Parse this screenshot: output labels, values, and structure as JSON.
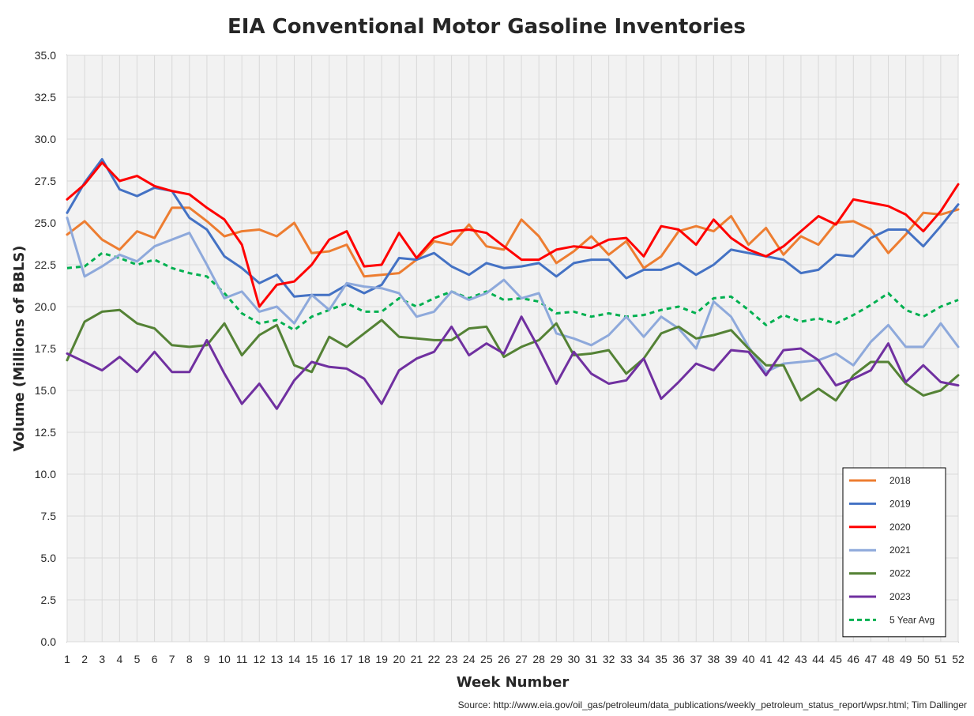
{
  "chart_data": {
    "type": "line",
    "title": "EIA Conventional Motor Gasoline Inventories",
    "xlabel": "Week Number",
    "ylabel": "Volume (Millions of BBLS)",
    "source": "Source: http://www.eia.gov/oil_gas/petroleum/data_publications/weekly_petroleum_status_report/wpsr.html; Tim Dallinger",
    "xlim": [
      1,
      52
    ],
    "ylim": [
      0,
      35
    ],
    "ytick_step": 2.5,
    "grid": true,
    "legend_position": "bottom-right",
    "x": [
      1,
      2,
      3,
      4,
      5,
      6,
      7,
      8,
      9,
      10,
      11,
      12,
      13,
      14,
      15,
      16,
      17,
      18,
      19,
      20,
      21,
      22,
      23,
      24,
      25,
      26,
      27,
      28,
      29,
      30,
      31,
      32,
      33,
      34,
      35,
      36,
      37,
      38,
      39,
      40,
      41,
      42,
      43,
      44,
      45,
      46,
      47,
      48,
      49,
      50,
      51,
      52
    ],
    "series": [
      {
        "name": "2018",
        "color": "#ED7D31",
        "dashed": false,
        "values": [
          24.3,
          25.1,
          24.0,
          23.4,
          24.5,
          24.1,
          25.9,
          25.9,
          25.1,
          24.2,
          24.5,
          24.6,
          24.2,
          25.0,
          23.2,
          23.3,
          23.7,
          21.8,
          21.9,
          22.0,
          22.8,
          23.9,
          23.7,
          24.9,
          23.6,
          23.4,
          25.2,
          24.2,
          22.6,
          23.3,
          24.2,
          23.1,
          23.9,
          22.3,
          23.0,
          24.5,
          24.8,
          24.5,
          25.4,
          23.7,
          24.7,
          23.1,
          24.2,
          23.7,
          25.0,
          25.1,
          24.6,
          23.2,
          24.3,
          25.6,
          25.5,
          25.8
        ]
      },
      {
        "name": "2019",
        "color": "#4472C4",
        "dashed": false,
        "values": [
          25.6,
          27.4,
          28.8,
          27.0,
          26.6,
          27.1,
          26.9,
          25.3,
          24.6,
          23.0,
          22.3,
          21.4,
          21.9,
          20.6,
          20.7,
          20.7,
          21.3,
          20.8,
          21.3,
          22.9,
          22.8,
          23.2,
          22.4,
          21.9,
          22.6,
          22.3,
          22.4,
          22.6,
          21.8,
          22.6,
          22.8,
          22.8,
          21.7,
          22.2,
          22.2,
          22.6,
          21.9,
          22.5,
          23.4,
          23.2,
          23.0,
          22.8,
          22.0,
          22.2,
          23.1,
          23.0,
          24.1,
          24.6,
          24.6,
          23.6,
          24.8,
          26.1
        ]
      },
      {
        "name": "2020",
        "color": "#FF0000",
        "dashed": false,
        "values": [
          26.4,
          27.3,
          28.6,
          27.5,
          27.8,
          27.2,
          26.9,
          26.7,
          25.9,
          25.2,
          23.7,
          20.0,
          21.3,
          21.5,
          22.5,
          24.0,
          24.5,
          22.4,
          22.5,
          24.4,
          22.9,
          24.1,
          24.5,
          24.6,
          24.4,
          23.6,
          22.8,
          22.8,
          23.4,
          23.6,
          23.5,
          24.0,
          24.1,
          23.0,
          24.8,
          24.6,
          23.7,
          25.2,
          24.1,
          23.4,
          23.0,
          23.6,
          24.5,
          25.4,
          24.9,
          26.4,
          26.2,
          26.0,
          25.5,
          24.5,
          25.7,
          27.3
        ]
      },
      {
        "name": "2021",
        "color": "#8EA9DB",
        "dashed": false,
        "values": [
          25.3,
          21.8,
          22.4,
          23.1,
          22.7,
          23.6,
          24.0,
          24.4,
          22.5,
          20.5,
          20.9,
          19.7,
          20.0,
          19.0,
          20.7,
          19.8,
          21.4,
          21.2,
          21.1,
          20.8,
          19.4,
          19.7,
          20.9,
          20.4,
          20.8,
          21.6,
          20.5,
          20.8,
          18.4,
          18.1,
          17.7,
          18.3,
          19.4,
          18.2,
          19.4,
          18.7,
          17.5,
          20.3,
          19.4,
          17.6,
          16.1,
          16.6,
          16.7,
          16.8,
          17.2,
          16.5,
          17.9,
          18.9,
          17.6,
          17.6,
          19.0,
          17.6
        ]
      },
      {
        "name": "2022",
        "color": "#548235",
        "dashed": false,
        "values": [
          16.8,
          19.1,
          19.7,
          19.8,
          19.0,
          18.7,
          17.7,
          17.6,
          17.7,
          19.0,
          17.1,
          18.3,
          18.9,
          16.5,
          16.1,
          18.2,
          17.6,
          18.4,
          19.2,
          18.2,
          18.1,
          18.0,
          18.0,
          18.7,
          18.8,
          17.0,
          17.6,
          18.0,
          19.0,
          17.1,
          17.2,
          17.4,
          16.0,
          16.9,
          18.4,
          18.8,
          18.1,
          18.3,
          18.6,
          17.5,
          16.5,
          16.5,
          14.4,
          15.1,
          14.4,
          15.9,
          16.7,
          16.7,
          15.4,
          14.7,
          15.0,
          15.9
        ]
      },
      {
        "name": "2023",
        "color": "#7030A0",
        "dashed": false,
        "values": [
          17.2,
          16.7,
          16.2,
          17.0,
          16.1,
          17.3,
          16.1,
          16.1,
          18.0,
          16.0,
          14.2,
          15.4,
          13.9,
          15.6,
          16.7,
          16.4,
          16.3,
          15.7,
          14.2,
          16.2,
          16.9,
          17.3,
          18.8,
          17.1,
          17.8,
          17.2,
          19.4,
          17.5,
          15.4,
          17.3,
          16.0,
          15.4,
          15.6,
          16.9,
          14.5,
          15.5,
          16.6,
          16.2,
          17.4,
          17.3,
          15.9,
          17.4,
          17.5,
          16.8,
          15.3,
          15.7,
          16.2,
          17.8,
          15.5,
          16.5,
          15.5,
          15.3
        ]
      },
      {
        "name": "5 Year Avg",
        "color": "#00B050",
        "dashed": true,
        "values": [
          22.3,
          22.4,
          23.2,
          22.9,
          22.5,
          22.8,
          22.3,
          22.0,
          21.8,
          20.8,
          19.6,
          19.0,
          19.2,
          18.6,
          19.4,
          19.8,
          20.2,
          19.7,
          19.7,
          20.5,
          20.0,
          20.5,
          20.9,
          20.5,
          20.9,
          20.4,
          20.5,
          20.3,
          19.6,
          19.7,
          19.4,
          19.6,
          19.4,
          19.5,
          19.8,
          20.0,
          19.6,
          20.5,
          20.6,
          19.8,
          18.9,
          19.5,
          19.1,
          19.3,
          19.0,
          19.5,
          20.1,
          20.8,
          19.8,
          19.4,
          20.0,
          20.4
        ]
      }
    ]
  }
}
